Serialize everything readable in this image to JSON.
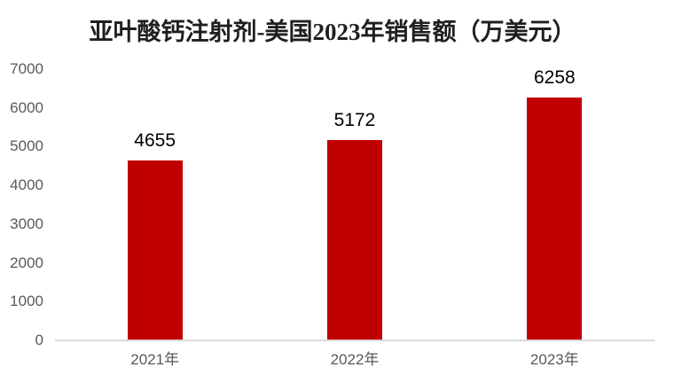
{
  "chart_data": {
    "type": "bar",
    "title": "亚叶酸钙注射剂-美国2023年销售额（万美元）",
    "categories": [
      "2021年",
      "2022年",
      "2023年"
    ],
    "values": [
      4655,
      5172,
      6258
    ],
    "data_labels": [
      "4655",
      "5172",
      "6258"
    ],
    "xlabel": "",
    "ylabel": "",
    "ylim": [
      0,
      7000
    ],
    "ytick_step": 1000,
    "ytick_labels": [
      "0",
      "1000",
      "2000",
      "3000",
      "4000",
      "5000",
      "6000",
      "7000"
    ],
    "grid": false,
    "legend": "none"
  },
  "colors": {
    "bar": "#C00000",
    "axis_line": "#D9D9D9",
    "tick_text": "#595959",
    "data_label": "#000000",
    "title_text": "#1F1F1F",
    "background": "#FFFFFF"
  }
}
